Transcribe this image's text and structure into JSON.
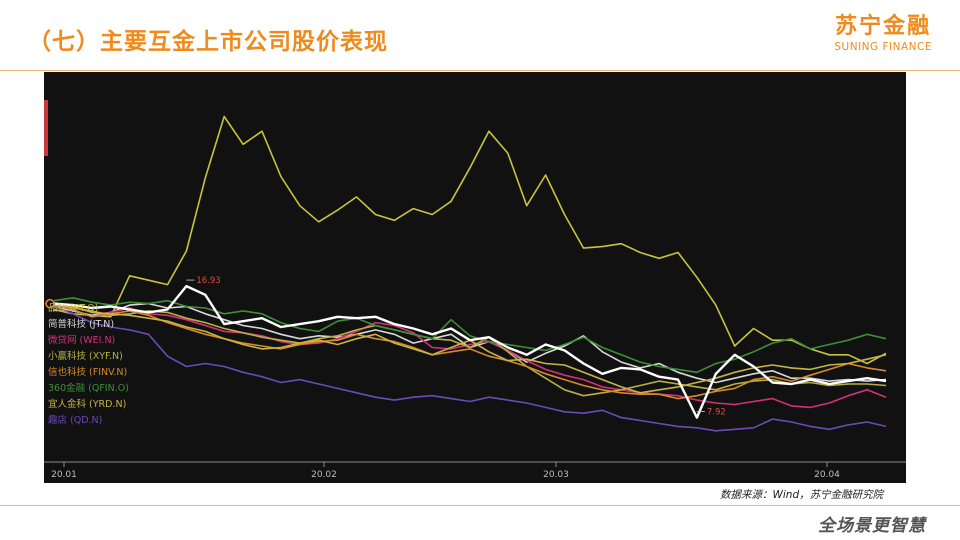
{
  "header": {
    "title": "（七）主要互金上市公司股价表现",
    "logo_cn": "苏宁金融",
    "logo_en": "SUNING FINANCE"
  },
  "footer": {
    "source": "数据来源：Wind，苏宁金融研究院",
    "slogan": "全场景更智慧"
  },
  "chart_data": {
    "type": "line",
    "title": "",
    "xlabel": "",
    "ylabel": "",
    "x_ticks": [
      "20.01",
      "20.02",
      "20.03",
      "20.04"
    ],
    "annotations": [
      {
        "label": "16.93",
        "series": "highlight",
        "index": 7
      },
      {
        "label": "7.92",
        "series": "highlight",
        "index": 34
      }
    ],
    "series": [
      {
        "name": "品钛 (PT.O)",
        "color": "#c9c23f",
        "values": [
          15.3,
          15.0,
          14.9,
          14.8,
          17.6,
          17.3,
          17.0,
          19.3,
          24.3,
          28.5,
          26.6,
          27.5,
          24.4,
          22.4,
          21.3,
          22.1,
          23.0,
          21.8,
          21.4,
          22.2,
          21.8,
          22.7,
          25.0,
          27.5,
          26.0,
          22.4,
          24.5,
          21.8,
          19.5,
          19.6,
          19.8,
          19.2,
          18.8,
          19.2,
          17.5,
          15.6,
          12.8,
          14.0,
          13.2,
          13.2,
          12.6,
          12.2,
          12.2,
          11.6,
          12.3
        ]
      },
      {
        "name": "简普科技 (JT.N)",
        "color": "#d8d8d8",
        "values": [
          15.5,
          15.2,
          14.9,
          15.1,
          15.6,
          15.7,
          15.4,
          15.5,
          15.0,
          14.6,
          14.2,
          14.0,
          13.6,
          13.3,
          13.5,
          13.4,
          13.6,
          13.9,
          13.6,
          13.0,
          13.3,
          13.6,
          12.7,
          13.1,
          12.5,
          11.7,
          12.3,
          12.8,
          13.5,
          12.4,
          11.7,
          11.3,
          11.6,
          11.0,
          10.6,
          10.3,
          10.6,
          10.9,
          11.1,
          10.6,
          10.6,
          10.4,
          10.5,
          10.4,
          10.5
        ]
      },
      {
        "name": "微贷网 (WEI.N)",
        "color": "#d4307a",
        "values": [
          15.6,
          15.3,
          14.8,
          15.1,
          15.4,
          15.0,
          14.9,
          14.6,
          14.2,
          13.8,
          13.7,
          13.5,
          13.1,
          12.9,
          13.0,
          13.3,
          13.8,
          14.4,
          14.2,
          13.7,
          12.7,
          12.6,
          12.9,
          13.1,
          12.5,
          11.8,
          11.2,
          10.8,
          10.5,
          10.0,
          9.8,
          9.6,
          9.5,
          9.4,
          9.1,
          8.9,
          8.8,
          9.0,
          9.2,
          8.7,
          8.6,
          8.9,
          9.4,
          9.8,
          9.3
        ]
      },
      {
        "name": "小赢科技 (XYF.N)",
        "color": "#b9b042",
        "values": [
          15.6,
          15.4,
          15.2,
          14.9,
          15.0,
          15.2,
          15.1,
          14.7,
          14.4,
          14.0,
          13.7,
          13.4,
          13.2,
          13.0,
          13.3,
          13.5,
          13.9,
          14.2,
          13.9,
          13.6,
          13.3,
          13.2,
          12.7,
          13.4,
          12.4,
          11.4,
          10.6,
          9.8,
          9.4,
          9.6,
          9.8,
          10.1,
          10.4,
          10.2,
          10.0,
          9.8,
          10.2,
          10.4,
          10.5,
          10.2,
          10.3,
          10.1,
          10.2,
          10.2,
          10.1
        ]
      },
      {
        "name": "信也科技 (FINV.N)",
        "color": "#d58a2c",
        "values": [
          15.7,
          15.3,
          14.8,
          15.0,
          15.2,
          14.9,
          14.4,
          14.0,
          13.6,
          13.3,
          13.0,
          12.8,
          12.6,
          12.9,
          13.1,
          13.2,
          13.6,
          13.3,
          13.1,
          12.7,
          12.2,
          12.4,
          12.6,
          12.1,
          11.8,
          11.4,
          10.9,
          10.5,
          10.1,
          9.8,
          9.6,
          9.5,
          9.5,
          9.2,
          9.4,
          9.7,
          9.9,
          10.5,
          10.7,
          10.4,
          10.8,
          11.2,
          11.6,
          11.3,
          11.1
        ]
      },
      {
        "name": "360金融 (QFIN.O)",
        "color": "#3d8f35",
        "values": [
          15.9,
          16.1,
          15.8,
          15.6,
          15.8,
          15.7,
          15.9,
          15.5,
          15.4,
          15.0,
          15.2,
          15.0,
          14.4,
          14.0,
          13.8,
          14.5,
          14.7,
          14.2,
          13.9,
          13.6,
          13.3,
          14.6,
          13.5,
          13.1,
          12.9,
          12.7,
          12.5,
          12.9,
          13.4,
          12.7,
          12.2,
          11.7,
          11.4,
          11.2,
          11.0,
          11.6,
          11.9,
          12.4,
          13.0,
          13.3,
          12.6,
          12.9,
          13.2,
          13.6,
          13.3
        ]
      },
      {
        "name": "宜人金科 (YRD.N)",
        "color": "#c7b445",
        "values": [
          15.6,
          15.5,
          15.1,
          15.0,
          14.9,
          14.7,
          14.5,
          14.1,
          13.8,
          13.3,
          12.9,
          12.6,
          12.7,
          13.0,
          13.2,
          12.9,
          13.3,
          13.6,
          13.0,
          12.6,
          12.2,
          12.7,
          13.2,
          12.4,
          11.8,
          11.9,
          11.6,
          11.5,
          11.0,
          10.5,
          10.0,
          9.6,
          9.8,
          10.0,
          10.3,
          10.6,
          11.0,
          11.3,
          11.5,
          11.3,
          11.2,
          11.5,
          11.6,
          11.9,
          12.2
        ]
      },
      {
        "name": "趣店 (QD.N)",
        "color": "#6c4ab6",
        "values": [
          15.5,
          15.0,
          14.4,
          14.1,
          13.9,
          13.6,
          12.1,
          11.4,
          11.6,
          11.4,
          11.0,
          10.7,
          10.3,
          10.5,
          10.2,
          9.9,
          9.6,
          9.3,
          9.1,
          9.3,
          9.4,
          9.2,
          9.0,
          9.3,
          9.1,
          8.9,
          8.6,
          8.3,
          8.2,
          8.4,
          7.9,
          7.7,
          7.5,
          7.3,
          7.2,
          7.0,
          7.1,
          7.2,
          7.8,
          7.6,
          7.3,
          7.1,
          7.4,
          7.6,
          7.3
        ]
      },
      {
        "name": "",
        "color": "#ffffff",
        "width": 2.4,
        "values": [
          15.7,
          15.6,
          15.4,
          15.5,
          15.3,
          15.1,
          15.3,
          16.9,
          16.3,
          14.3,
          14.5,
          14.7,
          14.1,
          14.3,
          14.5,
          14.8,
          14.7,
          14.8,
          14.3,
          14.0,
          13.6,
          14.0,
          13.2,
          13.4,
          12.7,
          12.2,
          12.9,
          12.5,
          11.6,
          10.9,
          11.3,
          11.2,
          10.7,
          10.5,
          7.9,
          10.9,
          12.2,
          11.4,
          10.3,
          10.2,
          10.5,
          10.2,
          10.4,
          10.6,
          10.4
        ]
      }
    ],
    "ylim": [
      5,
      31
    ],
    "legend_position": "left",
    "grid": false
  }
}
